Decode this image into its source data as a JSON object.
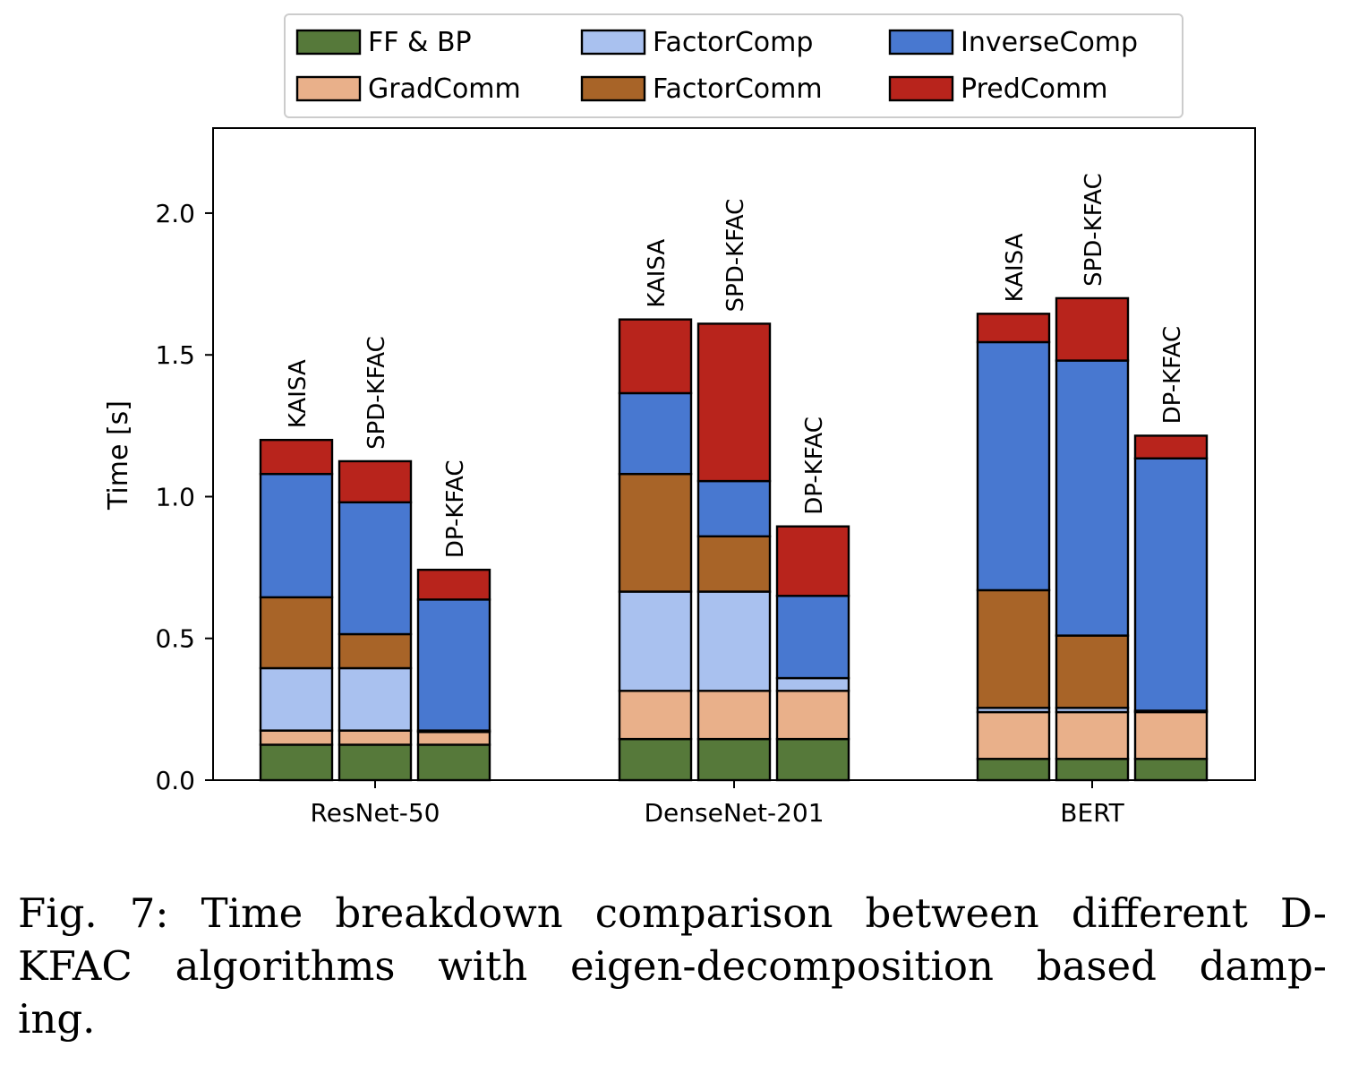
{
  "chart_data": {
    "type": "bar",
    "stacked": true,
    "ylabel": "Time [s]",
    "xlabel": "",
    "ylim": [
      0,
      2.3
    ],
    "yticks": [
      "0.0",
      "0.5",
      "1.0",
      "1.5",
      "2.0"
    ],
    "grid": false,
    "legend_position": "top-center",
    "components": [
      {
        "name": "FF & BP",
        "color": "#56793a"
      },
      {
        "name": "GradComm",
        "color": "#e9b08a"
      },
      {
        "name": "FactorComp",
        "color": "#a9c1ef"
      },
      {
        "name": "FactorComm",
        "color": "#a86428"
      },
      {
        "name": "InverseComp",
        "color": "#4878d0"
      },
      {
        "name": "PredComm",
        "color": "#b8241c"
      }
    ],
    "legend_order": [
      "FF & BP",
      "FactorComp",
      "InverseComp",
      "GradComm",
      "FactorComm",
      "PredComm"
    ],
    "groups": [
      {
        "name": "ResNet-50",
        "bars": [
          {
            "label": "KAISA",
            "values": [
              0.125,
              0.05,
              0.22,
              0.25,
              0.435,
              0.12
            ]
          },
          {
            "label": "SPD-KFAC",
            "values": [
              0.125,
              0.05,
              0.22,
              0.12,
              0.465,
              0.145
            ]
          },
          {
            "label": "DP-KFAC",
            "values": [
              0.125,
              0.045,
              0.005,
              0.0,
              0.462,
              0.105
            ]
          }
        ]
      },
      {
        "name": "DenseNet-201",
        "bars": [
          {
            "label": "KAISA",
            "values": [
              0.145,
              0.17,
              0.35,
              0.415,
              0.285,
              0.26
            ]
          },
          {
            "label": "SPD-KFAC",
            "values": [
              0.145,
              0.17,
              0.35,
              0.195,
              0.195,
              0.555
            ]
          },
          {
            "label": "DP-KFAC",
            "values": [
              0.145,
              0.17,
              0.045,
              0.0,
              0.29,
              0.245
            ]
          }
        ]
      },
      {
        "name": "BERT",
        "bars": [
          {
            "label": "KAISA",
            "values": [
              0.075,
              0.165,
              0.015,
              0.415,
              0.875,
              0.1
            ]
          },
          {
            "label": "SPD-KFAC",
            "values": [
              0.075,
              0.165,
              0.015,
              0.255,
              0.97,
              0.22
            ]
          },
          {
            "label": "DP-KFAC",
            "values": [
              0.075,
              0.165,
              0.005,
              0.0,
              0.89,
              0.08
            ]
          }
        ]
      }
    ]
  },
  "caption": {
    "line1": "Fig. 7: Time breakdown comparison between different D-",
    "line2": "KFAC algorithms with eigen-decomposition based damp-",
    "line3": "ing."
  }
}
